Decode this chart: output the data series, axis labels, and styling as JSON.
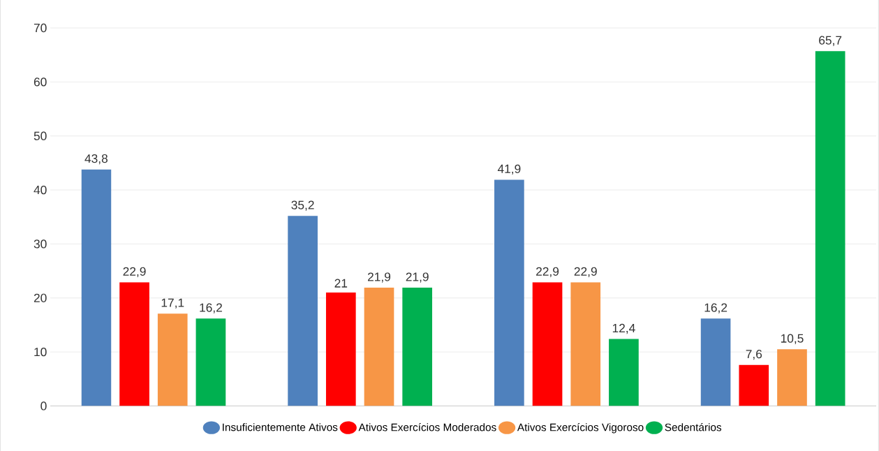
{
  "chart_data": {
    "type": "bar",
    "categories": [
      null,
      null,
      null,
      null
    ],
    "series": [
      {
        "name": "Insuficientemente Ativos",
        "color": "#4f81bd",
        "values": [
          43.8,
          35.2,
          41.9,
          16.2
        ],
        "value_labels": [
          "43,8",
          "35,2",
          "41,9",
          "16,2"
        ]
      },
      {
        "name": "Ativos Exercícios Moderados",
        "color": "#ff0000",
        "values": [
          22.9,
          21,
          22.9,
          7.6
        ],
        "value_labels": [
          "22,9",
          "21",
          "22,9",
          "7,6"
        ]
      },
      {
        "name": "Ativos Exercícios Vigoroso",
        "color": "#f79646",
        "values": [
          17.1,
          21.9,
          22.9,
          10.5
        ],
        "value_labels": [
          "17,1",
          "21,9",
          "22,9",
          "10,5"
        ]
      },
      {
        "name": "Sedentários",
        "color": "#00b050",
        "values": [
          16.2,
          21.9,
          12.4,
          65.7
        ],
        "value_labels": [
          "16,2",
          "21,9",
          "12,4",
          "65,7"
        ]
      }
    ],
    "ylim": [
      0,
      70
    ],
    "yticks": [
      0,
      10,
      20,
      30,
      40,
      50,
      60,
      70
    ],
    "grid": "y",
    "legend": "bottom"
  }
}
